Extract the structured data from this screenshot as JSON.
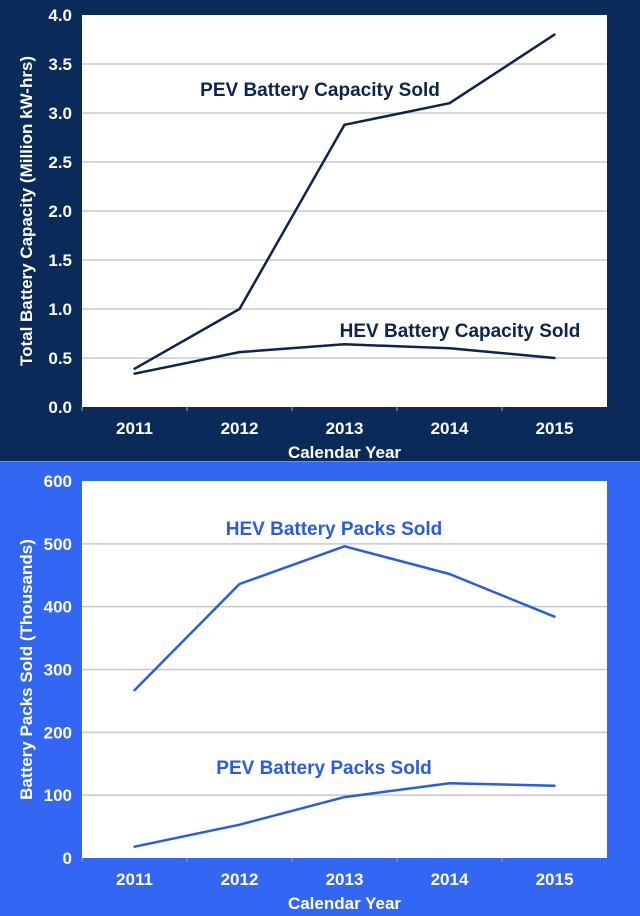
{
  "colors": {
    "top_background": "#0a2b5a",
    "top_line": "#0b2450",
    "bottom_background": "#3366f2",
    "bottom_line": "#2a5be8",
    "plot_background": "#ffffff",
    "gridline": "#c8c8c8",
    "axis_text": "#ffffff"
  },
  "chart_data": [
    {
      "type": "line",
      "categories": [
        "2011",
        "2012",
        "2013",
        "2014",
        "2015"
      ],
      "xlabel": "Calendar Year",
      "ylabel": "Total Battery Capacity (Million kW-hrs)",
      "ylim": [
        0,
        4.0
      ],
      "yticks": [
        "0.0",
        "0.5",
        "1.0",
        "1.5",
        "2.0",
        "2.5",
        "3.0",
        "3.5",
        "4.0"
      ],
      "grid": true,
      "series": [
        {
          "name": "PEV Battery Capacity Sold",
          "values": [
            0.39,
            1.0,
            2.88,
            3.1,
            3.8
          ]
        },
        {
          "name": "HEV Battery Capacity Sold",
          "values": [
            0.34,
            0.56,
            0.64,
            0.6,
            0.5
          ]
        }
      ]
    },
    {
      "type": "line",
      "categories": [
        "2011",
        "2012",
        "2013",
        "2014",
        "2015"
      ],
      "xlabel": "Calendar Year",
      "ylabel": "Battery Packs Sold (Thousands)",
      "ylim": [
        0,
        600
      ],
      "yticks": [
        "0",
        "100",
        "200",
        "300",
        "400",
        "500",
        "600"
      ],
      "grid": true,
      "series": [
        {
          "name": "HEV Battery Packs Sold",
          "values": [
            267,
            436,
            496,
            452,
            384
          ]
        },
        {
          "name": "PEV Battery Packs Sold",
          "values": [
            18,
            53,
            97,
            119,
            115
          ]
        }
      ]
    }
  ]
}
